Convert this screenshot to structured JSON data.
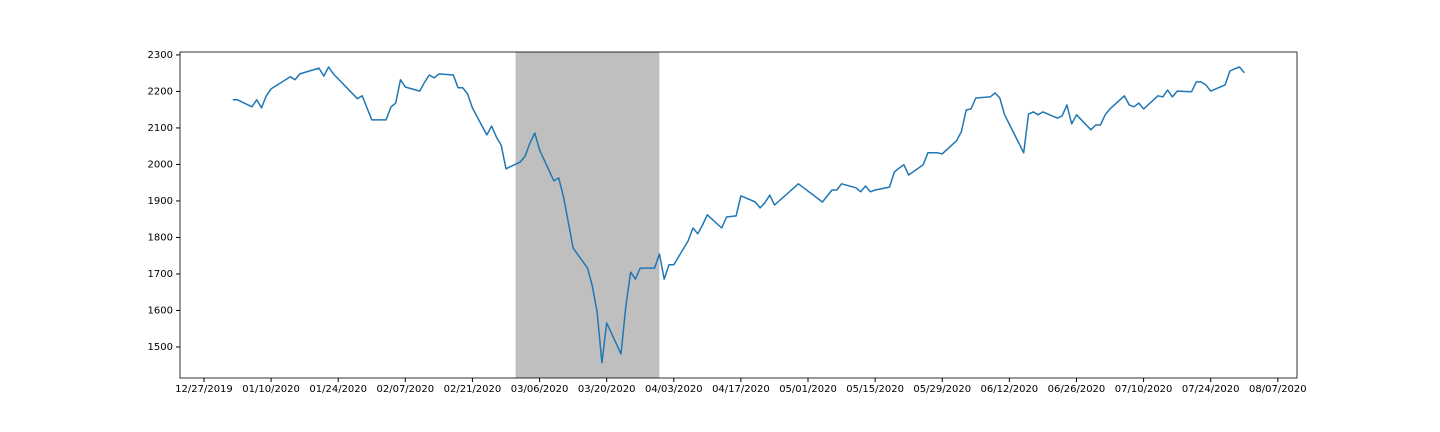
{
  "chart_data": {
    "type": "line",
    "color": "#1f77b4",
    "x": [
      "2020-01-02",
      "2020-01-03",
      "2020-01-06",
      "2020-01-07",
      "2020-01-08",
      "2020-01-09",
      "2020-01-10",
      "2020-01-14",
      "2020-01-15",
      "2020-01-16",
      "2020-01-20",
      "2020-01-21",
      "2020-01-22",
      "2020-01-23",
      "2020-01-28",
      "2020-01-29",
      "2020-01-31",
      "2020-02-03",
      "2020-02-04",
      "2020-02-05",
      "2020-02-06",
      "2020-02-07",
      "2020-02-10",
      "2020-02-11",
      "2020-02-12",
      "2020-02-13",
      "2020-02-14",
      "2020-02-17",
      "2020-02-18",
      "2020-02-19",
      "2020-02-20",
      "2020-02-21",
      "2020-02-24",
      "2020-02-25",
      "2020-02-26",
      "2020-02-27",
      "2020-02-28",
      "2020-03-02",
      "2020-03-03",
      "2020-03-04",
      "2020-03-05",
      "2020-03-06",
      "2020-03-09",
      "2020-03-10",
      "2020-03-11",
      "2020-03-12",
      "2020-03-13",
      "2020-03-16",
      "2020-03-17",
      "2020-03-18",
      "2020-03-19",
      "2020-03-20",
      "2020-03-23",
      "2020-03-24",
      "2020-03-25",
      "2020-03-26",
      "2020-03-27",
      "2020-03-30",
      "2020-03-31",
      "2020-04-01",
      "2020-04-02",
      "2020-04-03",
      "2020-04-06",
      "2020-04-07",
      "2020-04-08",
      "2020-04-09",
      "2020-04-10",
      "2020-04-13",
      "2020-04-14",
      "2020-04-16",
      "2020-04-17",
      "2020-04-20",
      "2020-04-21",
      "2020-04-22",
      "2020-04-23",
      "2020-04-24",
      "2020-04-29",
      "2020-05-04",
      "2020-05-06",
      "2020-05-07",
      "2020-05-08",
      "2020-05-11",
      "2020-05-12",
      "2020-05-13",
      "2020-05-14",
      "2020-05-15",
      "2020-05-18",
      "2020-05-19",
      "2020-05-20",
      "2020-05-21",
      "2020-05-22",
      "2020-05-25",
      "2020-05-26",
      "2020-05-27",
      "2020-05-28",
      "2020-05-29",
      "2020-06-01",
      "2020-06-02",
      "2020-06-03",
      "2020-06-04",
      "2020-06-05",
      "2020-06-08",
      "2020-06-09",
      "2020-06-10",
      "2020-06-11",
      "2020-06-15",
      "2020-06-16",
      "2020-06-17",
      "2020-06-18",
      "2020-06-19",
      "2020-06-22",
      "2020-06-23",
      "2020-06-24",
      "2020-06-25",
      "2020-06-26",
      "2020-06-29",
      "2020-06-30",
      "2020-07-01",
      "2020-07-02",
      "2020-07-03",
      "2020-07-06",
      "2020-07-07",
      "2020-07-08",
      "2020-07-09",
      "2020-07-10",
      "2020-07-13",
      "2020-07-14",
      "2020-07-15",
      "2020-07-16",
      "2020-07-17",
      "2020-07-20",
      "2020-07-21",
      "2020-07-22",
      "2020-07-23",
      "2020-07-24",
      "2020-07-27",
      "2020-07-28",
      "2020-07-29",
      "2020-07-30",
      "2020-07-31"
    ],
    "values": [
      2177,
      2177,
      2158,
      2177,
      2155,
      2188,
      2207,
      2240,
      2232,
      2248,
      2264,
      2242,
      2267,
      2248,
      2180,
      2188,
      2122,
      2122,
      2157,
      2168,
      2232,
      2212,
      2201,
      2225,
      2245,
      2237,
      2248,
      2245,
      2210,
      2210,
      2193,
      2155,
      2081,
      2105,
      2075,
      2053,
      1988,
      2007,
      2023,
      2059,
      2086,
      2040,
      1955,
      1963,
      1911,
      1842,
      1771,
      1716,
      1667,
      1596,
      1457,
      1566,
      1481,
      1610,
      1705,
      1686,
      1716,
      1716,
      1755,
      1686,
      1725,
      1725,
      1791,
      1826,
      1810,
      1834,
      1862,
      1826,
      1856,
      1859,
      1914,
      1897,
      1881,
      1895,
      1916,
      1889,
      1947,
      1897,
      1930,
      1930,
      1947,
      1936,
      1925,
      1941,
      1925,
      1930,
      1938,
      1979,
      1990,
      1999,
      1971,
      1999,
      2032,
      2032,
      2032,
      2029,
      2065,
      2090,
      2149,
      2152,
      2182,
      2185,
      2196,
      2182,
      2136,
      2032,
      2138,
      2144,
      2136,
      2144,
      2127,
      2133,
      2163,
      2111,
      2136,
      2095,
      2108,
      2108,
      2136,
      2152,
      2188,
      2163,
      2158,
      2168,
      2152,
      2188,
      2185,
      2204,
      2185,
      2201,
      2199,
      2226,
      2226,
      2218,
      2201,
      2218,
      2256,
      2262,
      2267,
      2251
    ],
    "xlim": [
      "2019-12-22",
      "2020-08-11"
    ],
    "xticks": [
      {
        "value": "2019-12-27",
        "label": "12/27/2019"
      },
      {
        "value": "2020-01-10",
        "label": "01/10/2020"
      },
      {
        "value": "2020-01-24",
        "label": "01/24/2020"
      },
      {
        "value": "2020-02-07",
        "label": "02/07/2020"
      },
      {
        "value": "2020-02-21",
        "label": "02/21/2020"
      },
      {
        "value": "2020-03-06",
        "label": "03/06/2020"
      },
      {
        "value": "2020-03-20",
        "label": "03/20/2020"
      },
      {
        "value": "2020-04-03",
        "label": "04/03/2020"
      },
      {
        "value": "2020-04-17",
        "label": "04/17/2020"
      },
      {
        "value": "2020-05-01",
        "label": "05/01/2020"
      },
      {
        "value": "2020-05-15",
        "label": "05/15/2020"
      },
      {
        "value": "2020-05-29",
        "label": "05/29/2020"
      },
      {
        "value": "2020-06-12",
        "label": "06/12/2020"
      },
      {
        "value": "2020-06-26",
        "label": "06/26/2020"
      },
      {
        "value": "2020-07-10",
        "label": "07/10/2020"
      },
      {
        "value": "2020-07-24",
        "label": "07/24/2020"
      },
      {
        "value": "2020-08-07",
        "label": "08/07/2020"
      }
    ],
    "ylim": [
      1415,
      2308
    ],
    "yticks": [
      1500,
      1600,
      1700,
      1800,
      1900,
      2000,
      2100,
      2200,
      2300
    ],
    "shaded_spans": [
      {
        "start": "2020-03-01",
        "end": "2020-03-31",
        "color": "#bfbfbf"
      }
    ]
  }
}
